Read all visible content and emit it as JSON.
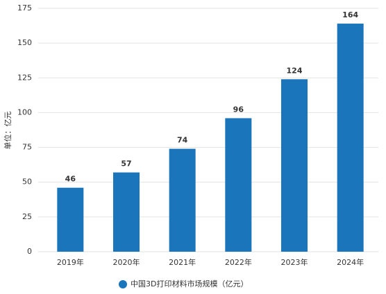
{
  "chart_data": {
    "type": "bar",
    "y_label": "单位：亿元",
    "categories": [
      "2019年",
      "2020年",
      "2021年",
      "2022年",
      "2023年",
      "2024年"
    ],
    "series": [
      {
        "name": "中国3D打印材料市场规模（亿元）",
        "color": "#1b75bb",
        "values": [
          46,
          57,
          74,
          96,
          124,
          164
        ]
      }
    ],
    "ylim": [
      0,
      175
    ],
    "yticks": [
      0,
      25,
      50,
      75,
      100,
      125,
      150,
      175
    ],
    "grid": true,
    "legend": "bottom",
    "data_labels": true
  }
}
